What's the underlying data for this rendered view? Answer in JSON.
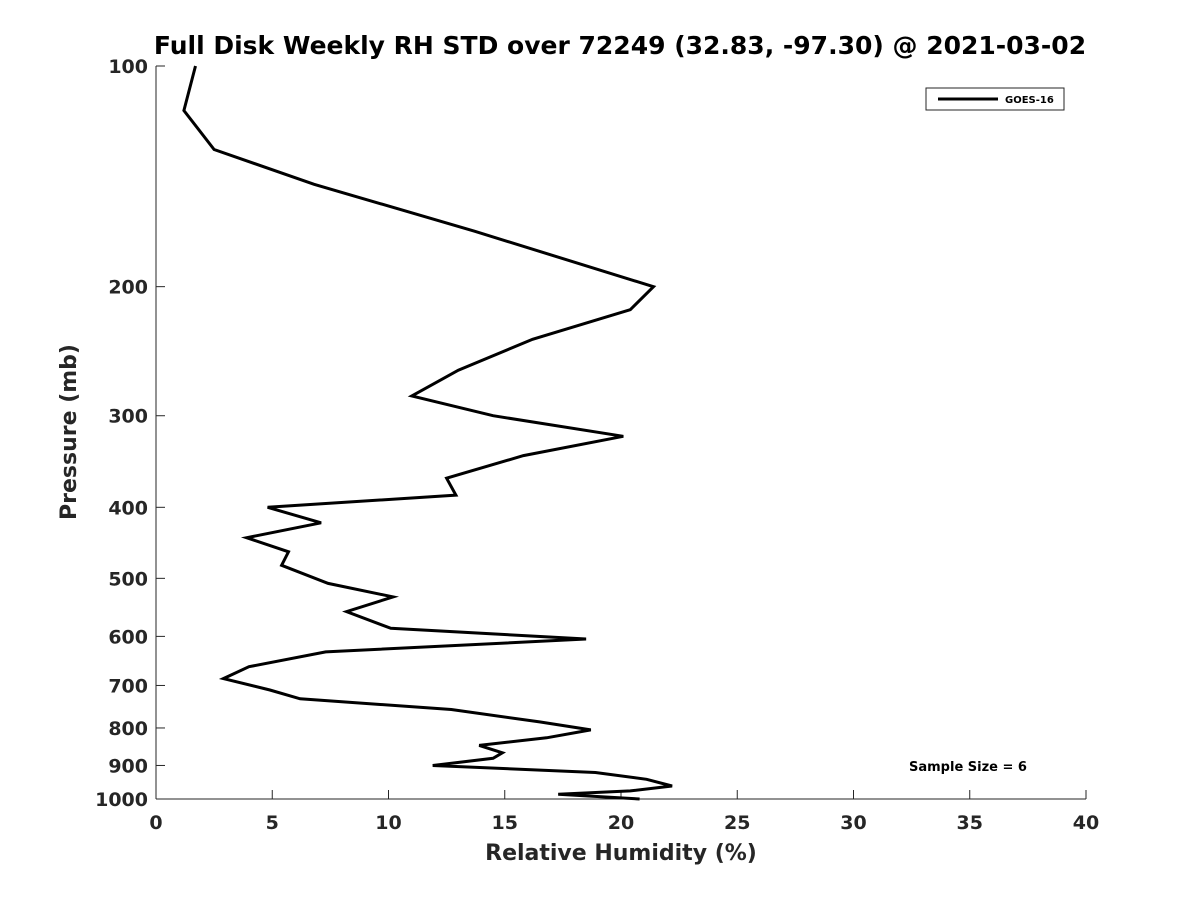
{
  "chart_data": {
    "type": "line",
    "title": "Full Disk Weekly RH STD over 72249 (32.83, -97.30) @ 2021-03-02",
    "xlabel": "Relative Humidity (%)",
    "ylabel": "Pressure (mb)",
    "xlim": [
      0,
      40
    ],
    "ylim": [
      100,
      1000
    ],
    "y_scale": "log",
    "y_reversed": true,
    "x_ticks": [
      "0",
      "5",
      "10",
      "15",
      "20",
      "25",
      "30",
      "35",
      "40"
    ],
    "y_ticks": [
      "100",
      "200",
      "300",
      "400",
      "500",
      "600",
      "700",
      "800",
      "900",
      "1000"
    ],
    "grid": false,
    "legend_position": "top-right",
    "annotation": "Sample Size = 6",
    "series": [
      {
        "name": "GOES-16",
        "color": "#000000",
        "x": [
          1.7,
          1.2,
          2.5,
          6.8,
          13.7,
          21.4,
          20.4,
          16.2,
          13.0,
          11.0,
          14.5,
          20.1,
          15.8,
          12.5,
          12.9,
          4.8,
          7.1,
          3.9,
          5.7,
          5.4,
          7.4,
          10.2,
          8.2,
          10.1,
          18.5,
          7.3,
          4.0,
          2.9,
          4.9,
          6.2,
          12.7,
          16.5,
          18.7,
          16.8,
          13.9,
          14.9,
          14.5,
          11.9,
          18.9,
          21.1,
          22.2,
          20.4,
          17.3,
          20.8
        ],
        "y": [
          100,
          115,
          130,
          145,
          168,
          200,
          215,
          236,
          260,
          282,
          300,
          320,
          340,
          365,
          385,
          400,
          420,
          440,
          460,
          480,
          508,
          530,
          555,
          585,
          605,
          630,
          660,
          685,
          710,
          730,
          755,
          785,
          805,
          825,
          845,
          865,
          880,
          900,
          920,
          940,
          960,
          975,
          985,
          1000
        ]
      }
    ]
  }
}
